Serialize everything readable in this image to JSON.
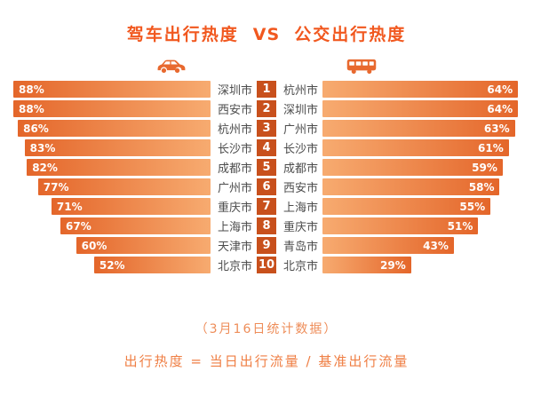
{
  "title": {
    "left": "驾车出行热度",
    "vs": "VS",
    "right": "公交出行热度"
  },
  "icons": {
    "left": "car-icon",
    "right": "bus-icon"
  },
  "footer": {
    "date_note": "（3月16日统计数据）",
    "formula": "出行热度 = 当日出行流量 / 基准出行流量"
  },
  "colors": {
    "title": "#f1581f",
    "icon": "#e8692f",
    "bar_outer": "#e4662a",
    "bar_inner": "#f7ab70",
    "rank_badge": "#c8501c",
    "city_text": "#4d4d4d",
    "footer_note": "#ee8d59",
    "footer_formula": "#ef7e43"
  },
  "chart_data": {
    "type": "bar",
    "orientation": "horizontal-mirrored",
    "title": "驾车出行热度 VS 公交出行热度",
    "date_note": "（3月16日统计数据）",
    "formula": "出行热度 = 当日出行流量 / 基准出行流量",
    "ranks": [
      1,
      2,
      3,
      4,
      5,
      6,
      7,
      8,
      9,
      10
    ],
    "series": [
      {
        "name": "驾车出行热度",
        "side": "left",
        "unit": "%",
        "scale_max": 90,
        "categories": [
          "深圳市",
          "西安市",
          "杭州市",
          "长沙市",
          "成都市",
          "广州市",
          "重庆市",
          "上海市",
          "天津市",
          "北京市"
        ],
        "values": [
          88,
          88,
          86,
          83,
          82,
          77,
          71,
          67,
          60,
          52
        ]
      },
      {
        "name": "公交出行热度",
        "side": "right",
        "unit": "%",
        "scale_max": 66,
        "categories": [
          "杭州市",
          "深圳市",
          "广州市",
          "长沙市",
          "成都市",
          "西安市",
          "上海市",
          "重庆市",
          "青岛市",
          "北京市"
        ],
        "values": [
          64,
          64,
          63,
          61,
          59,
          58,
          55,
          51,
          43,
          29
        ]
      }
    ],
    "legend": "none",
    "grid": false
  }
}
